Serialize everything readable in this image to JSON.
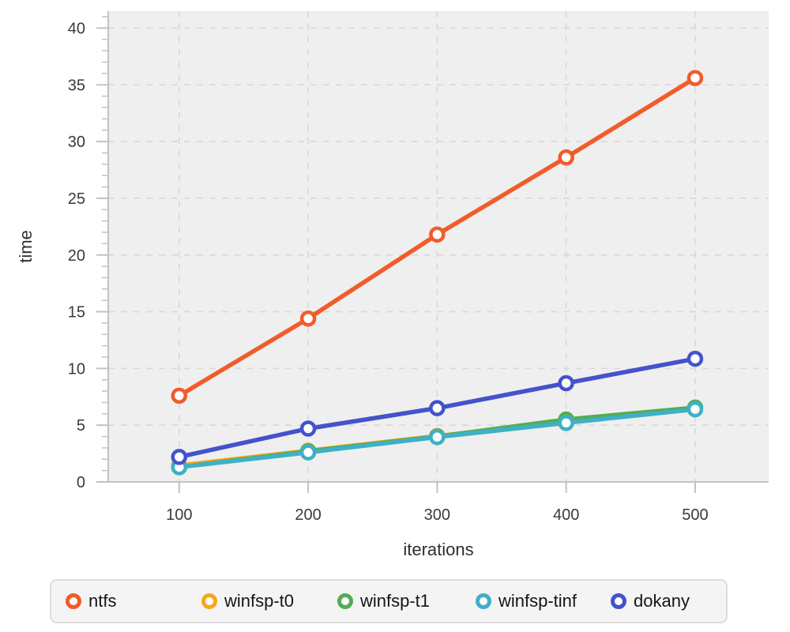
{
  "chart_data": {
    "type": "line",
    "title": "",
    "xlabel": "iterations",
    "ylabel": "time",
    "x": [
      100,
      200,
      300,
      400,
      500
    ],
    "x_ticks": [
      100,
      200,
      300,
      400,
      500
    ],
    "y_major_ticks": [
      0,
      5,
      10,
      15,
      20,
      25,
      30,
      35,
      40
    ],
    "y_minor_step": 1,
    "xlim": [
      45,
      557
    ],
    "ylim": [
      0,
      41.5
    ],
    "grid": "dashed",
    "legend_position": "bottom",
    "series": [
      {
        "name": "ntfs",
        "color": "#F15C2B",
        "values": [
          7.6,
          14.4,
          21.8,
          28.6,
          35.6
        ]
      },
      {
        "name": "winfsp-t0",
        "color": "#F7A71E",
        "values": [
          1.45,
          2.75,
          4.05,
          5.3,
          6.5
        ]
      },
      {
        "name": "winfsp-t1",
        "color": "#53AD53",
        "values": [
          1.3,
          2.7,
          4.0,
          5.5,
          6.55
        ]
      },
      {
        "name": "winfsp-tinf",
        "color": "#3FB0C6",
        "values": [
          1.3,
          2.6,
          3.95,
          5.2,
          6.4
        ]
      },
      {
        "name": "dokany",
        "color": "#4353CA",
        "values": [
          2.2,
          4.7,
          6.5,
          8.7,
          10.85
        ]
      }
    ]
  },
  "colors": {
    "plot_bg": "#efefef",
    "grid": "#d8d8d8",
    "axis": "#c2c2c2",
    "tick_text": "#3a3a3a",
    "title_text": "#2e2e2e",
    "legend_bg": "#f4f4f4",
    "legend_border": "#dcdcdc",
    "legend_text": "#151515",
    "marker_fill": "#ffffff"
  }
}
